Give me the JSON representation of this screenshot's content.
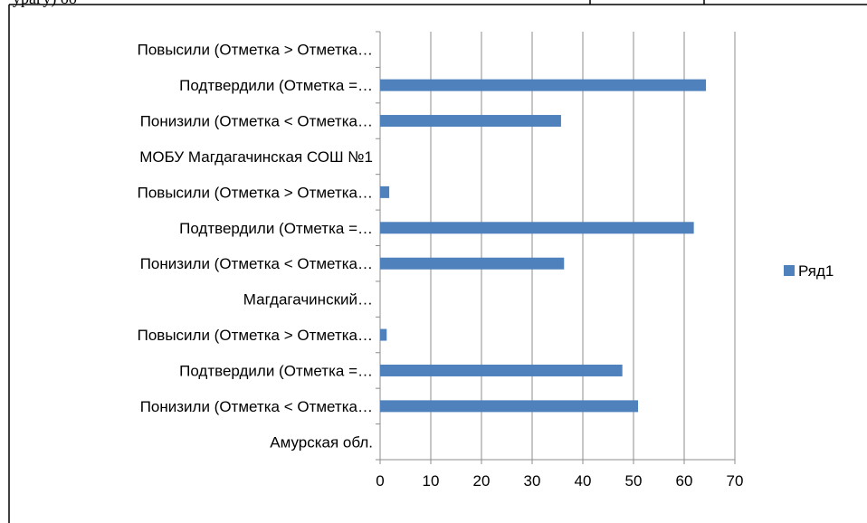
{
  "page_header": {
    "partial_text": "урагу) оо"
  },
  "chart_data": {
    "type": "bar",
    "orientation": "horizontal",
    "categories": [
      "Амурская обл.",
      "Понизили (Отметка < Отметка…",
      "Подтвердили (Отметка =…",
      "Повысили (Отметка > Отметка…",
      "Магдагачинский…",
      "Понизили (Отметка < Отметка…",
      "Подтвердили (Отметка =…",
      "Повысили (Отметка > Отметка…",
      "МОБУ Магдагачинская СОШ №1",
      "Понизили (Отметка < Отметка…",
      "Подтвердили (Отметка =…",
      "Повысили (Отметка > Отметка…"
    ],
    "series": [
      {
        "name": "Ряд1",
        "color": "#4f81bd",
        "values": [
          null,
          50.9,
          47.8,
          1.3,
          null,
          36.3,
          61.9,
          1.8,
          null,
          35.7,
          64.3,
          0
        ]
      }
    ],
    "xlim": [
      0,
      70
    ],
    "x_ticks": [
      "0",
      "10",
      "20",
      "30",
      "40",
      "50",
      "60",
      "70"
    ],
    "grid": "vertical",
    "legend": "right",
    "title": "",
    "xlabel": "",
    "ylabel": ""
  }
}
